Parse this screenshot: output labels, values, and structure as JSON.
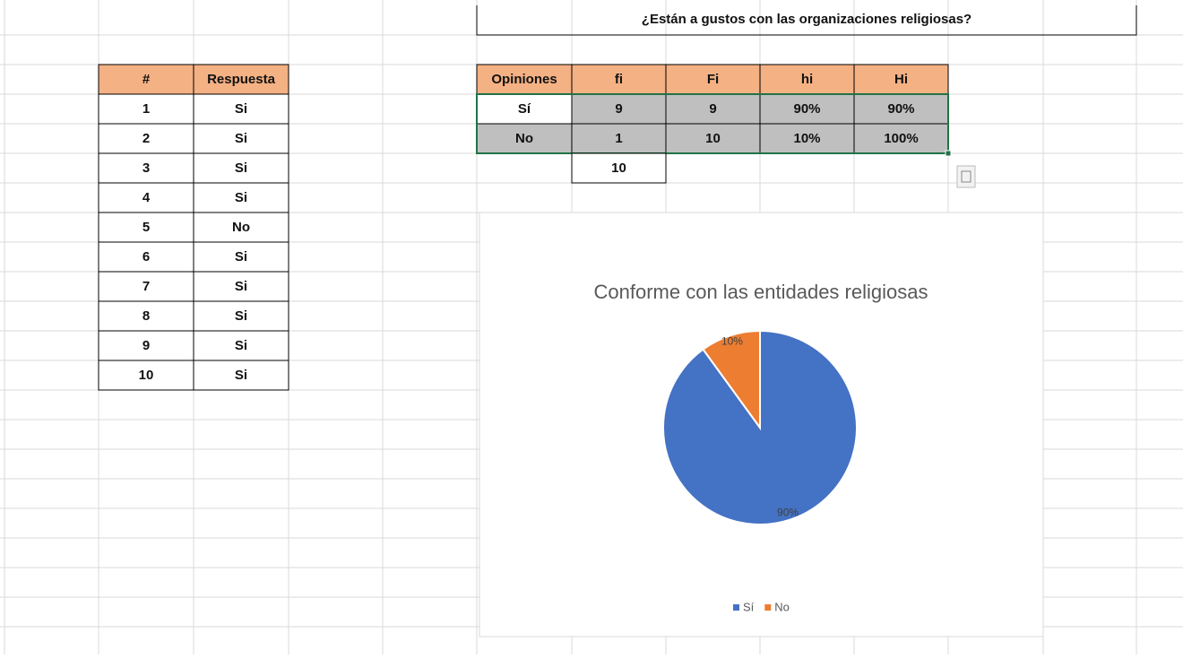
{
  "title": "¿Están a gustos con las organizaciones religiosas?",
  "responses": {
    "header": [
      "#",
      "Respuesta"
    ],
    "rows": [
      [
        "1",
        "Si"
      ],
      [
        "2",
        "Si"
      ],
      [
        "3",
        "Si"
      ],
      [
        "4",
        "Si"
      ],
      [
        "5",
        "No"
      ],
      [
        "6",
        "Si"
      ],
      [
        "7",
        "Si"
      ],
      [
        "8",
        "Si"
      ],
      [
        "9",
        "Si"
      ],
      [
        "10",
        "Si"
      ]
    ]
  },
  "frequency": {
    "header": [
      "Opiniones",
      "fi",
      "Fi",
      "hi",
      "Hi"
    ],
    "rows": [
      [
        "Sí",
        "9",
        "9",
        "90%",
        "90%"
      ],
      [
        "No",
        "1",
        "10",
        "10%",
        "100%"
      ]
    ],
    "total": "10"
  },
  "chart_data": {
    "type": "pie",
    "title": "Conforme con las entidades religiosas",
    "categories": [
      "Sí",
      "No"
    ],
    "values": [
      90,
      10
    ],
    "value_labels": [
      "90%",
      "10%"
    ],
    "colors": [
      "#4472c4",
      "#ed7d31"
    ],
    "legend": "bottom"
  }
}
